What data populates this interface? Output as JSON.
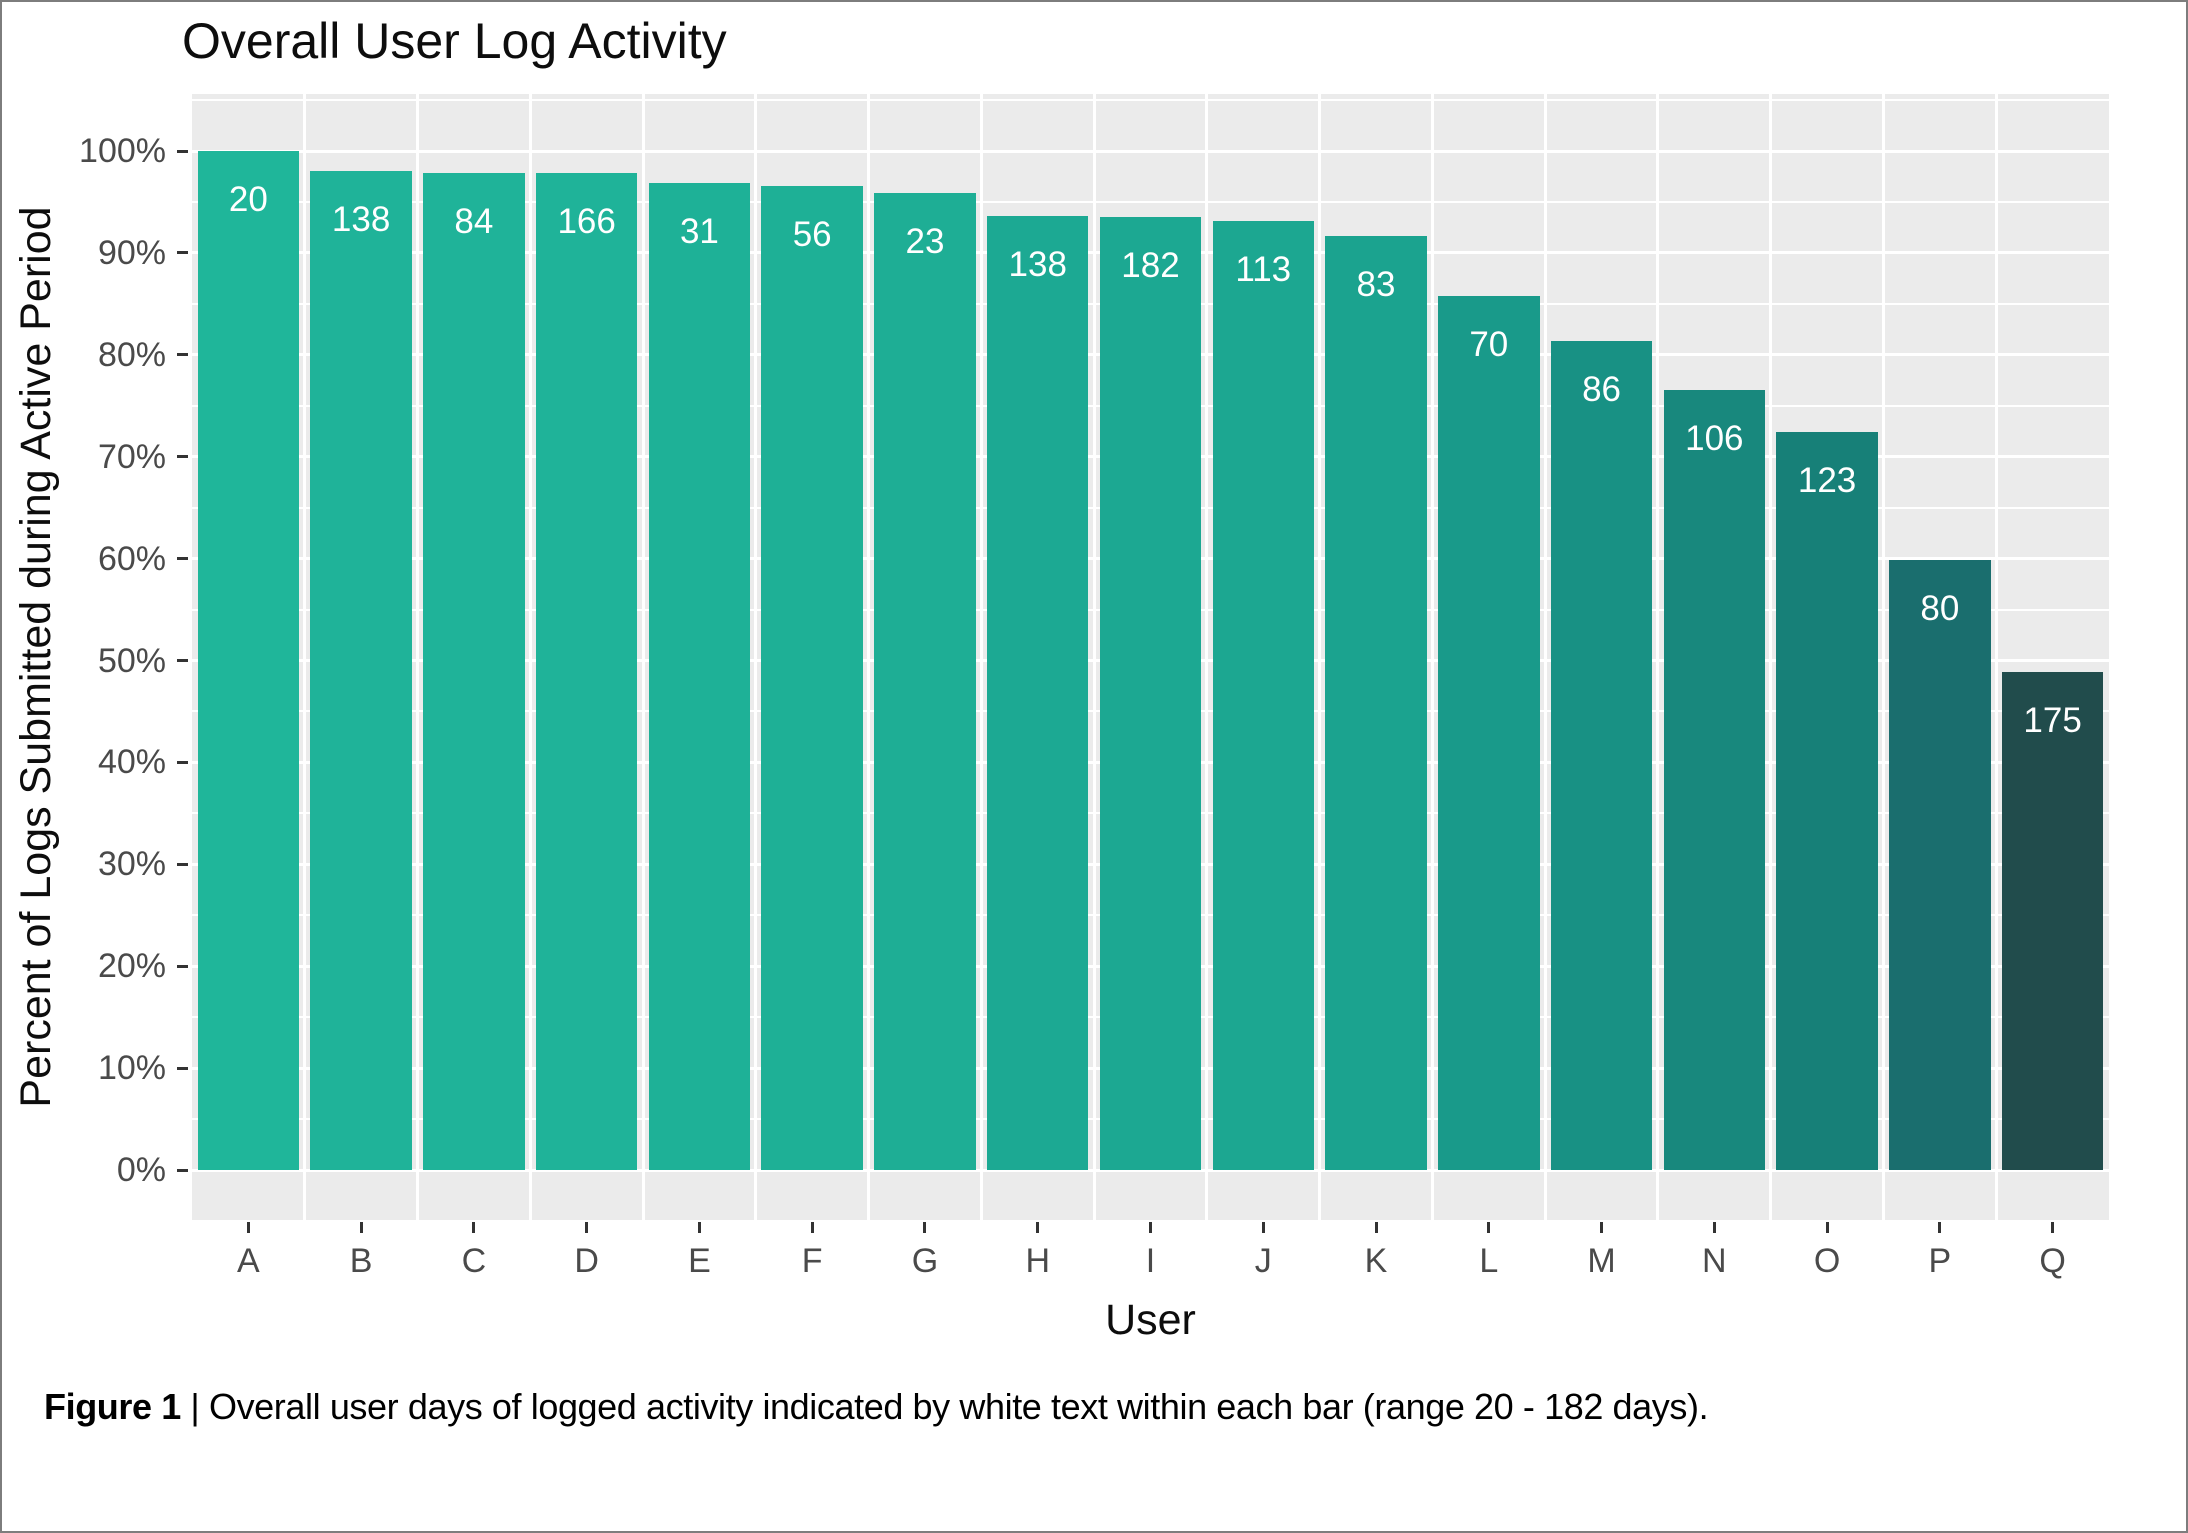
{
  "figure": {
    "caption_bold": "Figure 1",
    "caption_rest": " | Overall user days of logged activity indicated by white text within each bar (range 20 - 182 days)."
  },
  "chart_data": {
    "type": "bar",
    "title": "Overall User Log Activity",
    "xlabel": "User",
    "ylabel": "Percent of Logs Submitted during Active Period",
    "categories": [
      "A",
      "B",
      "C",
      "D",
      "E",
      "F",
      "G",
      "H",
      "I",
      "J",
      "K",
      "L",
      "M",
      "N",
      "O",
      "P",
      "Q"
    ],
    "series": [
      {
        "name": "percent_of_logs_submitted_during_active_period",
        "unit": "%",
        "values": [
          100,
          98.0,
          97.8,
          97.8,
          96.9,
          96.6,
          95.9,
          93.6,
          93.5,
          93.1,
          91.7,
          85.8,
          81.4,
          76.5,
          72.4,
          59.9,
          48.9
        ]
      },
      {
        "name": "days_of_logged_activity_bar_labels",
        "unit": "days",
        "values": [
          20,
          138,
          84,
          166,
          31,
          56,
          23,
          138,
          182,
          113,
          83,
          70,
          86,
          106,
          123,
          80,
          175
        ]
      }
    ],
    "ylim": [
      0,
      100
    ],
    "y_tick_percents": [
      0,
      10,
      20,
      30,
      40,
      50,
      60,
      70,
      80,
      90,
      100
    ],
    "y_tick_labels": [
      "0%",
      "10%",
      "20%",
      "30%",
      "40%",
      "50%",
      "60%",
      "70%",
      "80%",
      "90%",
      "100%"
    ],
    "y_minor_step": 5,
    "grid": true,
    "legend": "none",
    "panel_background": "#EBEBEB",
    "grid_color": "#FFFFFF",
    "bar_label_color": "#FFFFFF",
    "bar_colors": [
      "#1fb69a",
      "#1fb399",
      "#1fb399",
      "#1fb399",
      "#1eb197",
      "#1eb096",
      "#1eae95",
      "#1ca993",
      "#1ca892",
      "#1ca791",
      "#1ba38f",
      "#199a8a",
      "#189184",
      "#18887d",
      "#178078",
      "#1a6e6e",
      "#214c4c"
    ]
  }
}
